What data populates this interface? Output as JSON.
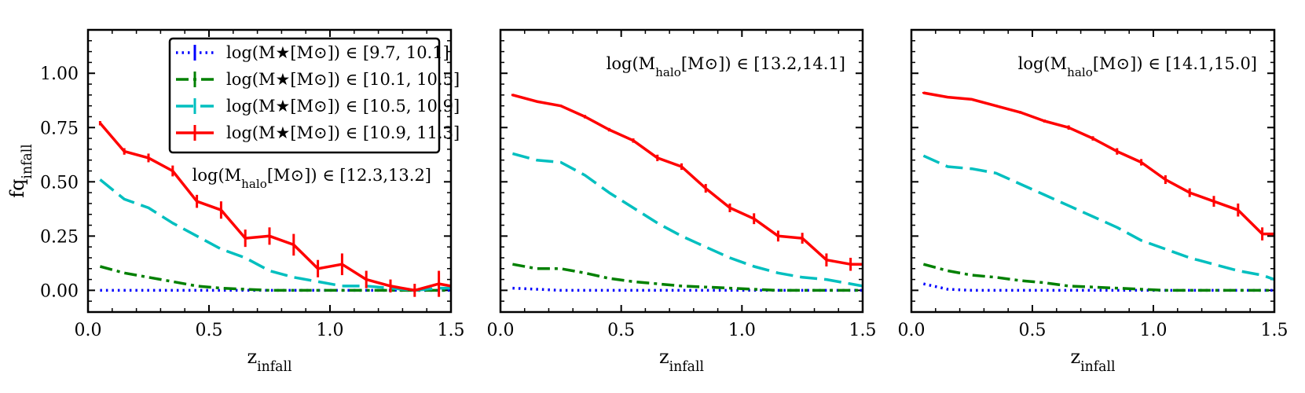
{
  "figure": {
    "ylabel": "fq_infall",
    "xlabel": "z_infall",
    "legend": {
      "placement": "top-right of first panel",
      "entries": [
        {
          "label": "log(M★[M⊙]) ∈ [9.7, 10.1]",
          "color": "#0000ff",
          "style": "dotted"
        },
        {
          "label": "log(M★[M⊙]) ∈ [10.1, 10.5]",
          "color": "#008000",
          "style": "dashdot"
        },
        {
          "label": "log(M★[M⊙]) ∈ [10.5, 10.9]",
          "color": "#00bfbf",
          "style": "dashed"
        },
        {
          "label": "log(M★[M⊙]) ∈ [10.9, 11.3]",
          "color": "#ff0000",
          "style": "solid"
        }
      ]
    }
  },
  "chart_data": [
    {
      "type": "line",
      "title": "log(M_halo[M⊙]) ∈ [12.3,13.2]",
      "xlabel": "z_infall",
      "ylabel": "fq_infall",
      "xlim": [
        0.0,
        1.5
      ],
      "ylim": [
        -0.1,
        1.2
      ],
      "xticks": [
        "0.0",
        "0.5",
        "1.0",
        "1.5"
      ],
      "yticks": [
        "0.00",
        "0.25",
        "0.50",
        "0.75",
        "1.00"
      ],
      "x": [
        0.05,
        0.15,
        0.25,
        0.35,
        0.45,
        0.55,
        0.65,
        0.75,
        0.85,
        0.95,
        1.05,
        1.15,
        1.25,
        1.35,
        1.45,
        1.5
      ],
      "series": [
        {
          "name": "log(M★[M⊙]) ∈ [9.7, 10.1]",
          "values": [
            0.0,
            0.0,
            0.0,
            0.0,
            0.0,
            0.0,
            0.0,
            0.0,
            0.0,
            0.0,
            0.0,
            0.0,
            0.0,
            0.0,
            0.0,
            0.0
          ]
        },
        {
          "name": "log(M★[M⊙]) ∈ [10.1, 10.5]",
          "values": [
            0.11,
            0.08,
            0.06,
            0.04,
            0.02,
            0.01,
            0.005,
            0.0,
            0.0,
            0.0,
            0.0,
            0.0,
            0.0,
            0.0,
            0.0,
            0.0
          ]
        },
        {
          "name": "log(M★[M⊙]) ∈ [10.5, 10.9]",
          "values": [
            0.51,
            0.42,
            0.38,
            0.31,
            0.25,
            0.19,
            0.15,
            0.09,
            0.06,
            0.04,
            0.02,
            0.02,
            0.01,
            0.0,
            0.01,
            0.01
          ]
        },
        {
          "name": "log(M★[M⊙]) ∈ [10.9, 11.3]",
          "values": [
            0.77,
            0.64,
            0.61,
            0.55,
            0.41,
            0.37,
            0.24,
            0.25,
            0.21,
            0.1,
            0.12,
            0.05,
            0.02,
            0.0,
            0.03,
            0.02
          ],
          "errors": [
            0.01,
            0.015,
            0.02,
            0.025,
            0.03,
            0.04,
            0.04,
            0.04,
            0.05,
            0.04,
            0.05,
            0.04,
            0.03,
            0.03,
            0.06,
            0.0
          ]
        }
      ]
    },
    {
      "type": "line",
      "title": "log(M_halo[M⊙]) ∈ [13.2,14.1]",
      "xlabel": "z_infall",
      "xlim": [
        0.0,
        1.5
      ],
      "ylim": [
        -0.1,
        1.2
      ],
      "xticks": [
        "0.0",
        "0.5",
        "1.0",
        "1.5"
      ],
      "x": [
        0.05,
        0.15,
        0.25,
        0.35,
        0.45,
        0.55,
        0.65,
        0.75,
        0.85,
        0.95,
        1.05,
        1.15,
        1.25,
        1.35,
        1.45,
        1.5
      ],
      "series": [
        {
          "name": "log(M★[M⊙]) ∈ [9.7, 10.1]",
          "values": [
            0.01,
            0.005,
            0.0,
            0.0,
            0.0,
            0.0,
            0.0,
            0.0,
            0.0,
            0.0,
            0.0,
            0.0,
            0.0,
            0.0,
            0.0,
            0.0
          ]
        },
        {
          "name": "log(M★[M⊙]) ∈ [10.1, 10.5]",
          "values": [
            0.12,
            0.1,
            0.1,
            0.08,
            0.055,
            0.04,
            0.03,
            0.02,
            0.015,
            0.01,
            0.005,
            0.0,
            0.0,
            0.0,
            0.0,
            0.0
          ]
        },
        {
          "name": "log(M★[M⊙]) ∈ [10.5, 10.9]",
          "values": [
            0.63,
            0.6,
            0.59,
            0.53,
            0.45,
            0.38,
            0.31,
            0.25,
            0.2,
            0.15,
            0.11,
            0.08,
            0.06,
            0.05,
            0.03,
            0.02
          ]
        },
        {
          "name": "log(M★[M⊙]) ∈ [10.9, 11.3]",
          "values": [
            0.9,
            0.87,
            0.85,
            0.8,
            0.74,
            0.69,
            0.61,
            0.57,
            0.47,
            0.38,
            0.33,
            0.25,
            0.24,
            0.14,
            0.12,
            0.12
          ],
          "errors": [
            0.005,
            0.005,
            0.005,
            0.008,
            0.008,
            0.01,
            0.015,
            0.015,
            0.02,
            0.02,
            0.025,
            0.025,
            0.025,
            0.03,
            0.03,
            0.0
          ]
        }
      ]
    },
    {
      "type": "line",
      "title": "log(M_halo[M⊙]) ∈ [14.1,15.0]",
      "xlabel": "z_infall",
      "xlim": [
        0.0,
        1.5
      ],
      "ylim": [
        -0.1,
        1.2
      ],
      "xticks": [
        "0.0",
        "0.5",
        "1.0",
        "1.5"
      ],
      "x": [
        0.05,
        0.15,
        0.25,
        0.35,
        0.45,
        0.55,
        0.65,
        0.75,
        0.85,
        0.95,
        1.05,
        1.15,
        1.25,
        1.35,
        1.45,
        1.5
      ],
      "series": [
        {
          "name": "log(M★[M⊙]) ∈ [9.7, 10.1]",
          "values": [
            0.03,
            0.005,
            0.0,
            0.0,
            0.0,
            0.0,
            0.0,
            0.0,
            0.0,
            0.0,
            0.0,
            0.0,
            0.0,
            0.0,
            0.0,
            0.0
          ]
        },
        {
          "name": "log(M★[M⊙]) ∈ [10.1, 10.5]",
          "values": [
            0.12,
            0.09,
            0.07,
            0.06,
            0.045,
            0.035,
            0.02,
            0.015,
            0.01,
            0.005,
            0.0,
            0.0,
            0.0,
            0.0,
            0.0,
            0.0
          ]
        },
        {
          "name": "log(M★[M⊙]) ∈ [10.5, 10.9]",
          "values": [
            0.62,
            0.57,
            0.56,
            0.54,
            0.49,
            0.44,
            0.39,
            0.34,
            0.29,
            0.23,
            0.19,
            0.15,
            0.12,
            0.09,
            0.07,
            0.05
          ]
        },
        {
          "name": "log(M★[M⊙]) ∈ [10.9, 11.3]",
          "values": [
            0.91,
            0.89,
            0.88,
            0.85,
            0.82,
            0.78,
            0.75,
            0.7,
            0.64,
            0.59,
            0.51,
            0.45,
            0.41,
            0.37,
            0.26,
            0.26
          ],
          "errors": [
            0.004,
            0.004,
            0.004,
            0.005,
            0.006,
            0.007,
            0.01,
            0.01,
            0.015,
            0.015,
            0.02,
            0.02,
            0.025,
            0.03,
            0.03,
            0.0
          ]
        }
      ]
    }
  ]
}
